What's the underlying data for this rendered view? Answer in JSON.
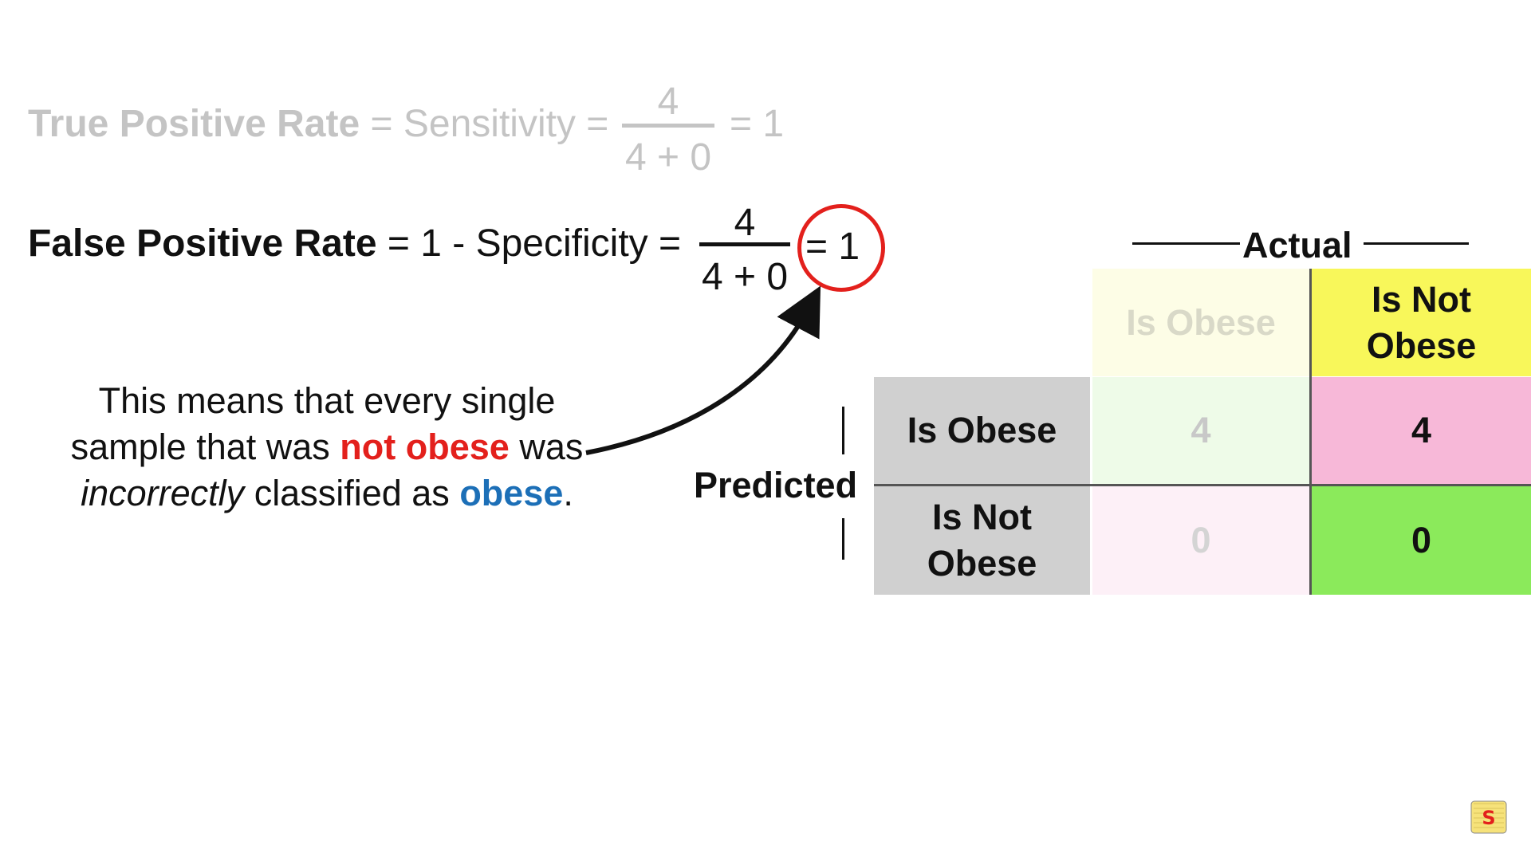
{
  "tpr": {
    "label": "True Positive Rate",
    "mid": "= Sensitivity =",
    "numerator": "4",
    "denominator": "4 + 0",
    "result": "= 1"
  },
  "fpr": {
    "label": "False Positive Rate",
    "mid": "= 1 - Specificity =",
    "numerator": "4",
    "denominator": "4 + 0",
    "result": "= 1"
  },
  "explanation": {
    "part1": "This means that every single sample that was",
    "highlight_not_obese": "not obese",
    "part2": "was",
    "italic": "incorrectly",
    "part3": "classified as",
    "highlight_obese": "obese",
    "period": "."
  },
  "matrix": {
    "actual_label": "Actual",
    "predicted_label": "Predicted",
    "col_headers": [
      "Is Obese",
      "Is Not Obese"
    ],
    "row_headers": [
      "Is Obese",
      "Is Not Obese"
    ],
    "cells": [
      [
        "4",
        "4"
      ],
      [
        "0",
        "0"
      ]
    ],
    "colors": {
      "header_faded_yellow": "#fdfde6",
      "header_yellow": "#f8f75a",
      "row_header_gray": "#d0d0d0",
      "tp_faded_green": "#eefbe8",
      "fp_pink": "#f7b8d8",
      "fn_faded_pink": "#fdf0f7",
      "tn_green": "#8bea5b"
    }
  },
  "colors": {
    "accent_red": "#e3201c",
    "accent_blue": "#1c6fb7",
    "faded_text": "#c4c4c4"
  },
  "logo": {
    "icon": "statquest-logo-icon"
  }
}
